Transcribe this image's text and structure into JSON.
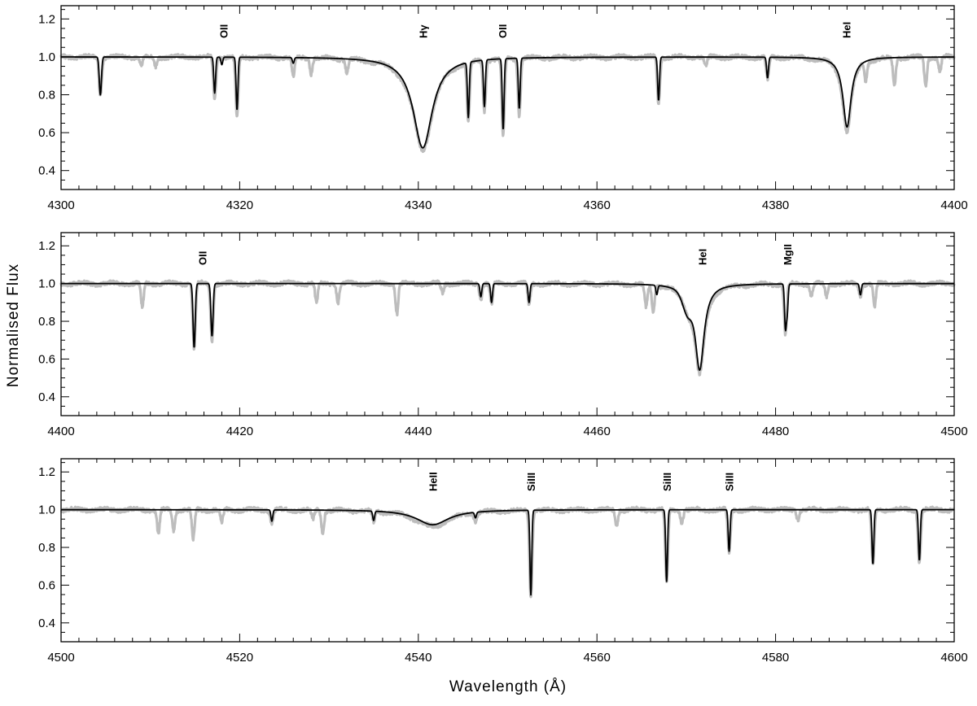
{
  "figure": {
    "ylabel": "Normalised Flux",
    "xlabel": "Wavelength (Å)"
  },
  "colors": {
    "observed": "#bdbdbd",
    "model": "#000000",
    "axes": "#000000"
  },
  "chart_data": [
    {
      "type": "line",
      "xlim": [
        4300,
        4400
      ],
      "ylim": [
        0.3,
        1.27
      ],
      "x_ticks": [
        "4300",
        "4320",
        "4340",
        "4360",
        "4380",
        "4400"
      ],
      "y_ticks": [
        "0.4",
        "0.6",
        "0.8",
        "1.0",
        "1.2"
      ],
      "annotations": [
        {
          "text": "OII",
          "x": 4318.2
        },
        {
          "text": "Hγ",
          "x": 4340.5
        },
        {
          "text": "OII",
          "x": 4349.4
        },
        {
          "text": "HeI",
          "x": 4387.9
        }
      ],
      "series": [
        {
          "role": "model",
          "lines": [
            {
              "x": 4304.4,
              "depth": 0.2,
              "width": 0.12
            },
            {
              "x": 4317.2,
              "depth": 0.19,
              "width": 0.1
            },
            {
              "x": 4318.0,
              "depth": 0.04,
              "width": 0.1
            },
            {
              "x": 4319.7,
              "depth": 0.28,
              "width": 0.1
            },
            {
              "x": 4326.0,
              "depth": 0.03,
              "width": 0.1
            },
            {
              "x": 4345.6,
              "depth": 0.3,
              "width": 0.1
            },
            {
              "x": 4347.4,
              "depth": 0.25,
              "width": 0.1
            },
            {
              "x": 4349.5,
              "depth": 0.38,
              "width": 0.1
            },
            {
              "x": 4351.3,
              "depth": 0.27,
              "width": 0.1
            },
            {
              "x": 4366.9,
              "depth": 0.23,
              "width": 0.1
            },
            {
              "x": 4379.1,
              "depth": 0.11,
              "width": 0.1
            }
          ],
          "broad": [
            {
              "x": 4340.5,
              "depth": 0.48,
              "width": 1.3
            },
            {
              "x": 4388.0,
              "depth": 0.37,
              "width": 0.55
            }
          ]
        },
        {
          "role": "observed",
          "lines": [
            {
              "x": 4304.4,
              "depth": 0.2,
              "width": 0.15
            },
            {
              "x": 4309.0,
              "depth": 0.04,
              "width": 0.15
            },
            {
              "x": 4310.6,
              "depth": 0.05,
              "width": 0.15
            },
            {
              "x": 4317.2,
              "depth": 0.22,
              "width": 0.15
            },
            {
              "x": 4319.7,
              "depth": 0.32,
              "width": 0.15
            },
            {
              "x": 4326.0,
              "depth": 0.1,
              "width": 0.15
            },
            {
              "x": 4328.0,
              "depth": 0.08,
              "width": 0.15
            },
            {
              "x": 4332.0,
              "depth": 0.07,
              "width": 0.15
            },
            {
              "x": 4345.6,
              "depth": 0.32,
              "width": 0.15
            },
            {
              "x": 4347.4,
              "depth": 0.27,
              "width": 0.15
            },
            {
              "x": 4349.5,
              "depth": 0.41,
              "width": 0.15
            },
            {
              "x": 4351.3,
              "depth": 0.3,
              "width": 0.15
            },
            {
              "x": 4366.9,
              "depth": 0.25,
              "width": 0.15
            },
            {
              "x": 4372.2,
              "depth": 0.05,
              "width": 0.15
            },
            {
              "x": 4379.1,
              "depth": 0.12,
              "width": 0.15
            },
            {
              "x": 4390.1,
              "depth": 0.1,
              "width": 0.15
            },
            {
              "x": 4393.3,
              "depth": 0.15,
              "width": 0.15
            },
            {
              "x": 4396.8,
              "depth": 0.15,
              "width": 0.15
            },
            {
              "x": 4398.4,
              "depth": 0.08,
              "width": 0.15
            }
          ],
          "broad": [
            {
              "x": 4340.5,
              "depth": 0.49,
              "width": 1.35
            },
            {
              "x": 4388.0,
              "depth": 0.39,
              "width": 0.6
            }
          ]
        }
      ]
    },
    {
      "type": "line",
      "xlim": [
        4400,
        4500
      ],
      "ylim": [
        0.3,
        1.27
      ],
      "x_ticks": [
        "4400",
        "4420",
        "4440",
        "4460",
        "4480",
        "4500"
      ],
      "y_ticks": [
        "0.4",
        "0.6",
        "0.8",
        "1.0",
        "1.2"
      ],
      "annotations": [
        {
          "text": "OII",
          "x": 4415.8
        },
        {
          "text": "HeI",
          "x": 4471.8
        },
        {
          "text": "MgII",
          "x": 4481.3
        }
      ],
      "series": [
        {
          "role": "model",
          "lines": [
            {
              "x": 4414.9,
              "depth": 0.34,
              "width": 0.12
            },
            {
              "x": 4416.9,
              "depth": 0.28,
              "width": 0.12
            },
            {
              "x": 4447.0,
              "depth": 0.07,
              "width": 0.1
            },
            {
              "x": 4448.2,
              "depth": 0.1,
              "width": 0.1
            },
            {
              "x": 4452.4,
              "depth": 0.1,
              "width": 0.1
            },
            {
              "x": 4466.7,
              "depth": 0.05,
              "width": 0.1
            },
            {
              "x": 4470.0,
              "depth": 0.05,
              "width": 0.5
            },
            {
              "x": 4481.1,
              "depth": 0.23,
              "width": 0.1
            },
            {
              "x": 4481.3,
              "depth": 0.15,
              "width": 0.1
            },
            {
              "x": 4489.5,
              "depth": 0.06,
              "width": 0.1
            }
          ],
          "broad": [
            {
              "x": 4471.5,
              "depth": 0.45,
              "width": 0.6
            },
            {
              "x": 4470.2,
              "depth": 0.07,
              "width": 0.7
            }
          ]
        },
        {
          "role": "observed",
          "lines": [
            {
              "x": 4409.1,
              "depth": 0.13,
              "width": 0.15
            },
            {
              "x": 4414.9,
              "depth": 0.35,
              "width": 0.15
            },
            {
              "x": 4416.9,
              "depth": 0.3,
              "width": 0.15
            },
            {
              "x": 4428.6,
              "depth": 0.11,
              "width": 0.15
            },
            {
              "x": 4431.0,
              "depth": 0.1,
              "width": 0.15
            },
            {
              "x": 4437.6,
              "depth": 0.16,
              "width": 0.15
            },
            {
              "x": 4442.7,
              "depth": 0.05,
              "width": 0.15
            },
            {
              "x": 4447.0,
              "depth": 0.08,
              "width": 0.15
            },
            {
              "x": 4448.2,
              "depth": 0.11,
              "width": 0.15
            },
            {
              "x": 4452.4,
              "depth": 0.11,
              "width": 0.15
            },
            {
              "x": 4465.5,
              "depth": 0.12,
              "width": 0.15
            },
            {
              "x": 4466.3,
              "depth": 0.14,
              "width": 0.15
            },
            {
              "x": 4481.1,
              "depth": 0.27,
              "width": 0.15
            },
            {
              "x": 4484.0,
              "depth": 0.06,
              "width": 0.15
            },
            {
              "x": 4485.7,
              "depth": 0.07,
              "width": 0.15
            },
            {
              "x": 4489.5,
              "depth": 0.07,
              "width": 0.15
            },
            {
              "x": 4491.1,
              "depth": 0.12,
              "width": 0.15
            }
          ],
          "broad": [
            {
              "x": 4471.5,
              "depth": 0.47,
              "width": 0.65
            },
            {
              "x": 4470.2,
              "depth": 0.09,
              "width": 0.75
            }
          ]
        }
      ]
    },
    {
      "type": "line",
      "xlim": [
        4500,
        4600
      ],
      "ylim": [
        0.3,
        1.27
      ],
      "x_ticks": [
        "4500",
        "4520",
        "4540",
        "4560",
        "4580",
        "4600"
      ],
      "y_ticks": [
        "0.4",
        "0.6",
        "0.8",
        "1.0",
        "1.2"
      ],
      "annotations": [
        {
          "text": "HeII",
          "x": 4541.6
        },
        {
          "text": "SiIII",
          "x": 4552.6
        },
        {
          "text": "SiIII",
          "x": 4567.8
        },
        {
          "text": "SiIII",
          "x": 4574.8
        }
      ],
      "series": [
        {
          "role": "model",
          "lines": [
            {
              "x": 4523.6,
              "depth": 0.06,
              "width": 0.1
            },
            {
              "x": 4535.0,
              "depth": 0.05,
              "width": 0.1
            },
            {
              "x": 4546.4,
              "depth": 0.03,
              "width": 0.1
            },
            {
              "x": 4552.6,
              "depth": 0.45,
              "width": 0.1
            },
            {
              "x": 4567.8,
              "depth": 0.38,
              "width": 0.1
            },
            {
              "x": 4574.8,
              "depth": 0.22,
              "width": 0.1
            },
            {
              "x": 4590.9,
              "depth": 0.29,
              "width": 0.1
            },
            {
              "x": 4596.1,
              "depth": 0.27,
              "width": 0.1
            }
          ],
          "broad": [
            {
              "x": 4541.6,
              "depth": 0.08,
              "width": 2.2
            }
          ]
        },
        {
          "role": "observed",
          "lines": [
            {
              "x": 4510.9,
              "depth": 0.13,
              "width": 0.15
            },
            {
              "x": 4512.6,
              "depth": 0.11,
              "width": 0.15
            },
            {
              "x": 4514.8,
              "depth": 0.16,
              "width": 0.15
            },
            {
              "x": 4518.0,
              "depth": 0.07,
              "width": 0.15
            },
            {
              "x": 4523.6,
              "depth": 0.07,
              "width": 0.15
            },
            {
              "x": 4528.2,
              "depth": 0.05,
              "width": 0.15
            },
            {
              "x": 4529.3,
              "depth": 0.12,
              "width": 0.15
            },
            {
              "x": 4535.0,
              "depth": 0.06,
              "width": 0.15
            },
            {
              "x": 4546.4,
              "depth": 0.04,
              "width": 0.15
            },
            {
              "x": 4552.6,
              "depth": 0.46,
              "width": 0.15
            },
            {
              "x": 4562.2,
              "depth": 0.08,
              "width": 0.15
            },
            {
              "x": 4567.8,
              "depth": 0.39,
              "width": 0.15
            },
            {
              "x": 4569.5,
              "depth": 0.07,
              "width": 0.15
            },
            {
              "x": 4574.8,
              "depth": 0.23,
              "width": 0.15
            },
            {
              "x": 4582.5,
              "depth": 0.05,
              "width": 0.15
            },
            {
              "x": 4590.9,
              "depth": 0.3,
              "width": 0.15
            },
            {
              "x": 4596.1,
              "depth": 0.28,
              "width": 0.15
            }
          ],
          "broad": [
            {
              "x": 4541.6,
              "depth": 0.09,
              "width": 2.3
            }
          ]
        }
      ]
    }
  ]
}
